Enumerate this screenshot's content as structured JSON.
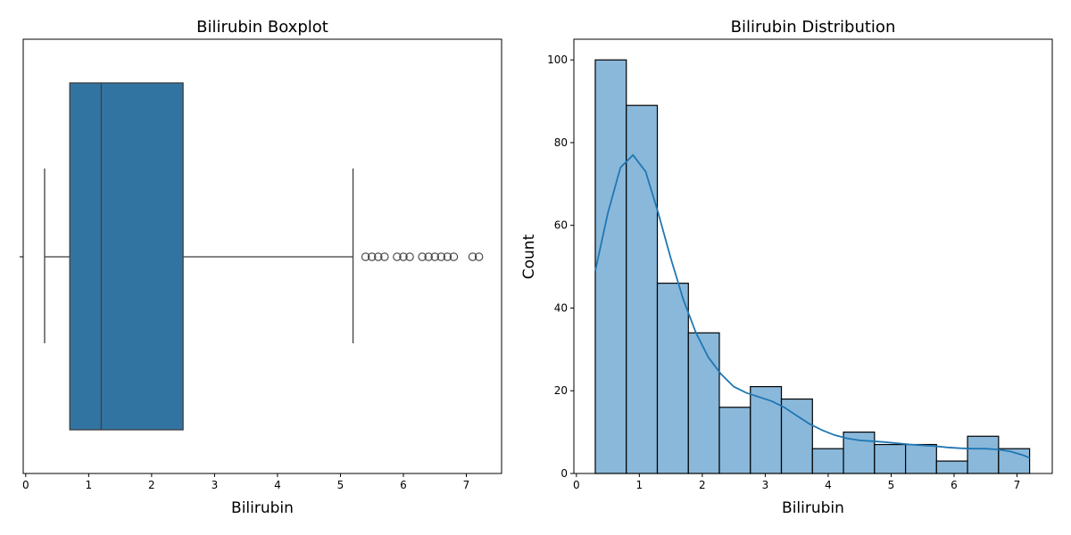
{
  "chart_data": [
    {
      "type": "boxplot",
      "title": "Bilirubin Boxplot",
      "xlabel": "Bilirubin",
      "ylabel": "",
      "xlim": [
        -0.04,
        7.56
      ],
      "xticks": [
        0,
        1,
        2,
        3,
        4,
        5,
        6,
        7
      ],
      "box": {
        "whisker_low": 0.3,
        "q1": 0.7,
        "median": 1.2,
        "q3": 2.5,
        "whisker_high": 5.2
      },
      "outliers": [
        5.4,
        5.5,
        5.6,
        5.7,
        5.9,
        6.0,
        6.1,
        6.3,
        6.4,
        6.5,
        6.6,
        6.7,
        6.8,
        7.1,
        7.2
      ],
      "colors": {
        "box": "#3274a1",
        "line": "#3f3f3f"
      }
    },
    {
      "type": "histogram",
      "title": "Bilirubin Distribution",
      "xlabel": "Bilirubin",
      "ylabel": "Count",
      "xlim": [
        -0.04,
        7.56
      ],
      "ylim": [
        0,
        105
      ],
      "xticks": [
        0,
        1,
        2,
        3,
        4,
        5,
        6,
        7
      ],
      "yticks": [
        0,
        20,
        40,
        60,
        80,
        100
      ],
      "bin_edges": [
        0.3,
        0.793,
        1.286,
        1.779,
        2.271,
        2.764,
        3.257,
        3.75,
        4.243,
        4.736,
        5.229,
        5.721,
        6.214,
        6.707,
        7.2
      ],
      "counts": [
        100,
        89,
        46,
        34,
        16,
        21,
        18,
        6,
        10,
        7,
        7,
        3,
        9,
        6
      ],
      "kde": {
        "x": [
          0.3,
          0.5,
          0.7,
          0.9,
          1.1,
          1.3,
          1.5,
          1.7,
          1.9,
          2.1,
          2.3,
          2.5,
          2.7,
          2.9,
          3.1,
          3.3,
          3.5,
          3.7,
          3.9,
          4.1,
          4.3,
          4.5,
          4.7,
          4.9,
          5.1,
          5.3,
          5.5,
          5.7,
          5.9,
          6.1,
          6.3,
          6.5,
          6.7,
          6.9,
          7.1,
          7.2
        ],
        "y": [
          49,
          63,
          74,
          77,
          73,
          63,
          52,
          42,
          34,
          28,
          24,
          21,
          19.5,
          18.5,
          17.5,
          16,
          14,
          12,
          10.5,
          9.3,
          8.5,
          8,
          7.8,
          7.6,
          7.3,
          7,
          6.8,
          6.6,
          6.3,
          6.1,
          6,
          6,
          5.8,
          5.3,
          4.4,
          3.8
        ]
      },
      "colors": {
        "bar": "#8ab8da",
        "edge": "#000000",
        "kde": "#1f77b4"
      }
    }
  ]
}
